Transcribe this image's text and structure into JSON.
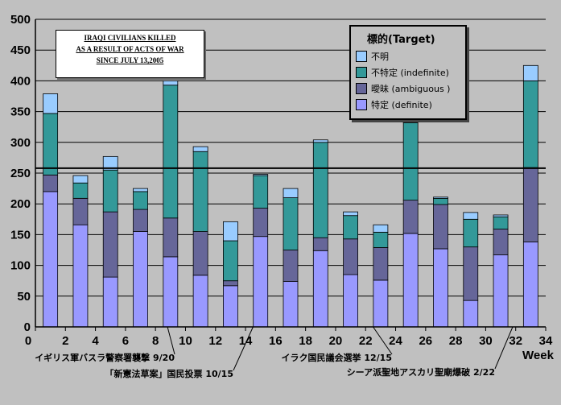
{
  "chart_data": {
    "type": "bar",
    "stacked": true,
    "title_lines": [
      "IRAQI CIVILIANS KILLED",
      "AS A RESULT OF ACTS OF WAR",
      "SINCE JULY 13,2005"
    ],
    "legend_title": "標的(Target)",
    "xlabel": "Week",
    "ylim": [
      0,
      500
    ],
    "yticks": [
      "0",
      "50",
      "100",
      "150",
      "200",
      "250",
      "300",
      "350",
      "400",
      "450",
      "500"
    ],
    "xticks": [
      "0",
      "2",
      "4",
      "6",
      "8",
      "10",
      "12",
      "14",
      "16",
      "18",
      "20",
      "22",
      "24",
      "26",
      "28",
      "30",
      "32",
      "34"
    ],
    "x_positions": [
      1,
      3,
      5,
      7,
      9,
      11,
      13,
      15,
      17,
      19,
      21,
      23,
      25,
      27,
      29,
      31,
      33
    ],
    "reference_line": 258,
    "series": [
      {
        "name": "特定 (definite)",
        "color": "#9999ff",
        "values": [
          220,
          166,
          81,
          155,
          114,
          84,
          67,
          147,
          74,
          124,
          85,
          76,
          152,
          127,
          43,
          117,
          138
        ]
      },
      {
        "name": "曖昧 (ambiguous )",
        "color": "#666699",
        "values": [
          27,
          43,
          106,
          36,
          63,
          71,
          8,
          46,
          51,
          21,
          58,
          53,
          54,
          72,
          87,
          42,
          121
        ]
      },
      {
        "name": "不特定 (indefinite)",
        "color": "#339999",
        "values": [
          100,
          25,
          68,
          29,
          216,
          130,
          65,
          53,
          85,
          155,
          38,
          25,
          126,
          10,
          45,
          20,
          141
        ]
      },
      {
        "name": "不明",
        "color": "#99ccff",
        "values": [
          32,
          12,
          22,
          5,
          7,
          8,
          31,
          2,
          15,
          4,
          6,
          12,
          5,
          2,
          11,
          3,
          25
        ]
      }
    ],
    "annotations": [
      {
        "text": "イギリス軍バスラ警察署襲撃 9/20",
        "x": 8.8
      },
      {
        "text": "「新憲法草案」国民投票 10/15",
        "x": 14.5
      },
      {
        "text": "イラク国民議会選挙 12/15",
        "x": 22.5
      },
      {
        "text": "シーア派聖地アスカリ聖廟爆破 2/22",
        "x": 31.8
      }
    ]
  }
}
